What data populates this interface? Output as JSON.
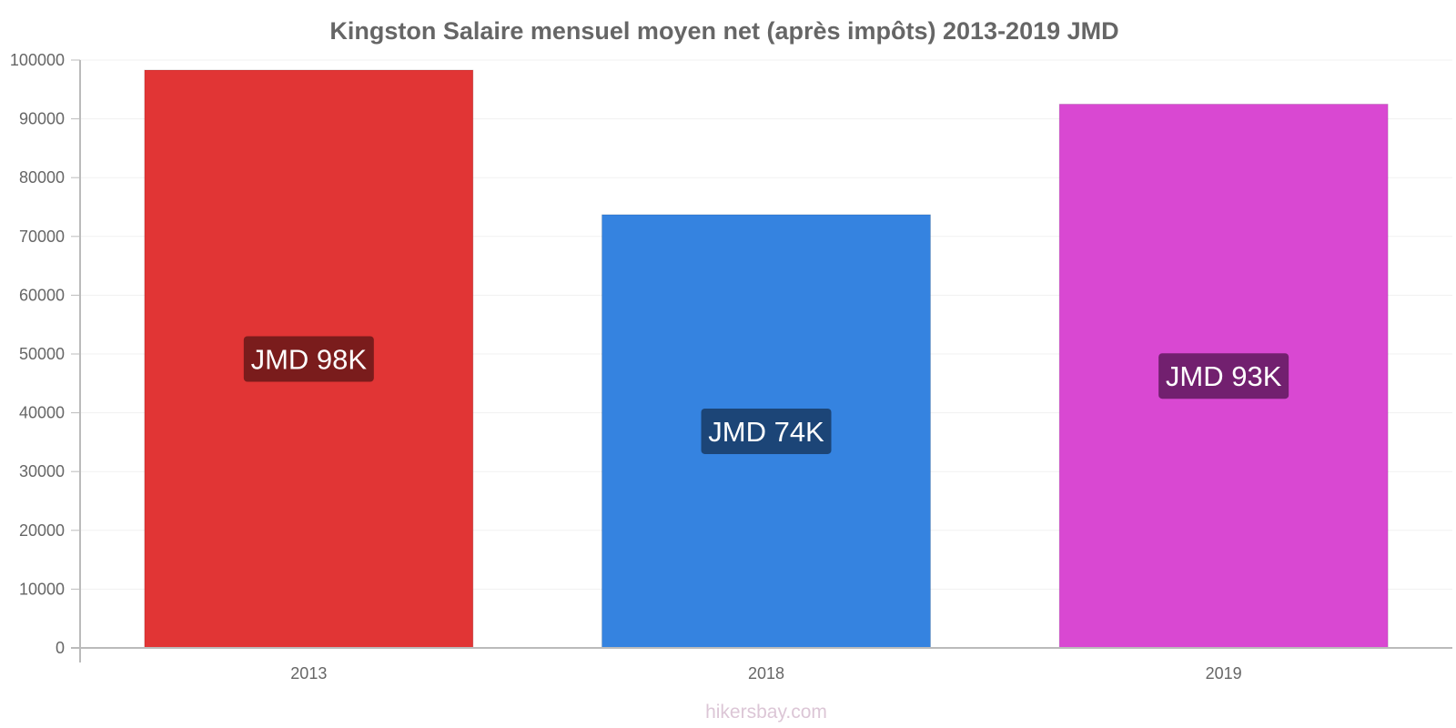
{
  "chart_data": {
    "type": "bar",
    "title": "Kingston Salaire mensuel moyen net (après impôts) 2013-2019 JMD",
    "xlabel": "",
    "ylabel": "",
    "ylim": [
      0,
      100000
    ],
    "yticks": [
      "0",
      "10000",
      "20000",
      "30000",
      "40000",
      "50000",
      "60000",
      "70000",
      "80000",
      "90000",
      "100000"
    ],
    "categories": [
      "2013",
      "2018",
      "2019"
    ],
    "values": [
      98300,
      73700,
      92500
    ],
    "data_labels": [
      "JMD 98K",
      "JMD 74K",
      "JMD 93K"
    ],
    "colors": [
      "#e13535",
      "#3583e0",
      "#d948d2"
    ],
    "label_bg_colors": [
      "#7a1c1c",
      "#1c4577",
      "#72206f"
    ],
    "grid": true,
    "legend": "none"
  },
  "watermark": "hikersbay.com"
}
